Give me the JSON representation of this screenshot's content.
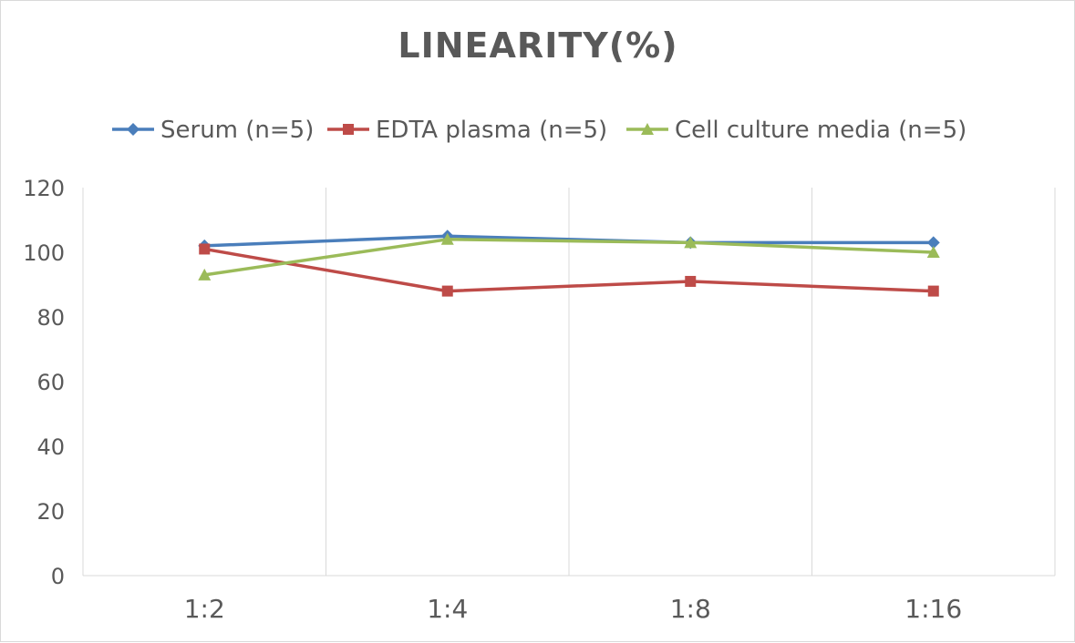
{
  "chart_data": {
    "type": "line",
    "title": "LINEARITY(%)",
    "xlabel": "",
    "ylabel": "",
    "categories": [
      "1:2",
      "1:4",
      "1:8",
      "1:16"
    ],
    "ylim": [
      0,
      120
    ],
    "yticks": [
      0,
      20,
      40,
      60,
      80,
      100,
      120
    ],
    "grid": "vertical",
    "legend_position": "top",
    "series": [
      {
        "name": "Serum (n=5)",
        "values": [
          102,
          105,
          103,
          103
        ],
        "color": "#4a7ebb",
        "marker": "diamond"
      },
      {
        "name": "EDTA plasma (n=5)",
        "values": [
          101,
          88,
          91,
          88
        ],
        "color": "#be4b48",
        "marker": "square"
      },
      {
        "name": "Cell culture media (n=5)",
        "values": [
          93,
          104,
          103,
          100
        ],
        "color": "#9bbb59",
        "marker": "triangle"
      }
    ]
  }
}
